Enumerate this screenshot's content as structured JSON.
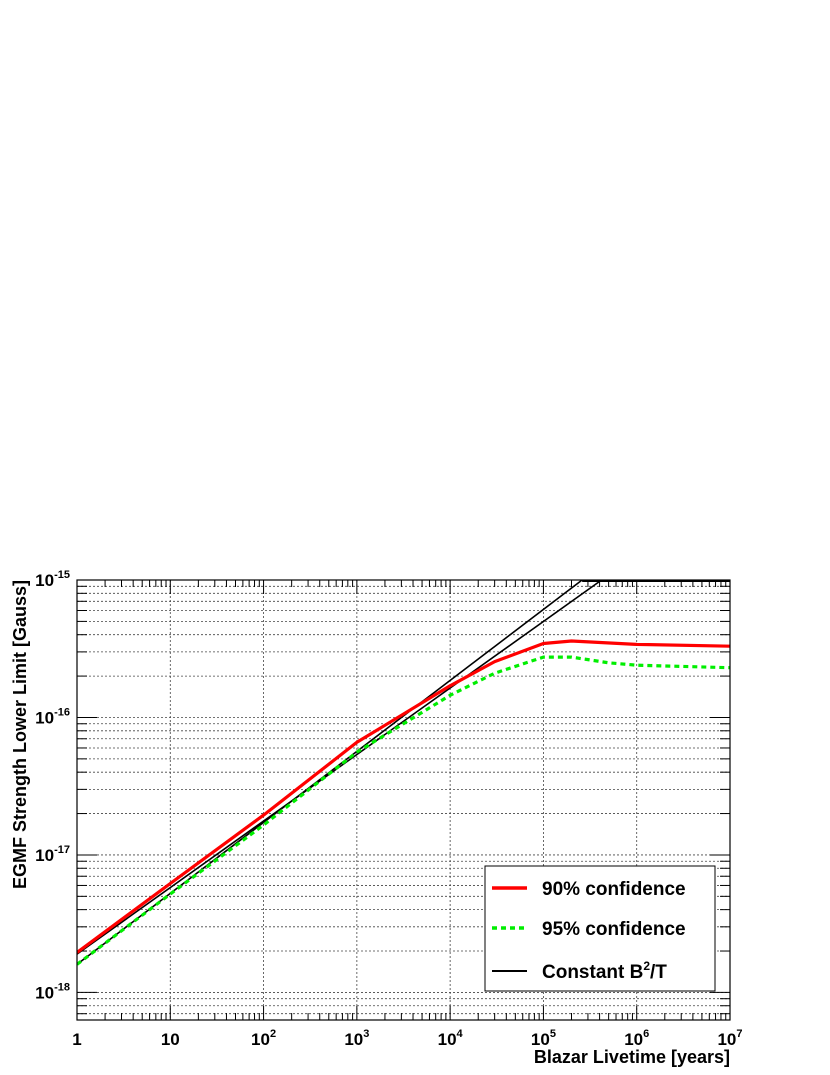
{
  "chart_data": {
    "type": "line",
    "xlabel": "Blazar Livetime [years]",
    "ylabel": "EGMF Strength Lower Limit [Gauss]",
    "xscale": "log",
    "yscale": "log",
    "xlim": [
      1,
      10000000
    ],
    "ylim": [
      6.3e-19,
      1e-15
    ],
    "x_ticks": [
      {
        "value": 1,
        "base": "1",
        "exp": ""
      },
      {
        "value": 10,
        "base": "10",
        "exp": ""
      },
      {
        "value": 100,
        "base": "10",
        "exp": "2"
      },
      {
        "value": 1000,
        "base": "10",
        "exp": "3"
      },
      {
        "value": 10000,
        "base": "10",
        "exp": "4"
      },
      {
        "value": 100000,
        "base": "10",
        "exp": "5"
      },
      {
        "value": 1000000,
        "base": "10",
        "exp": "6"
      },
      {
        "value": 10000000,
        "base": "10",
        "exp": "7"
      }
    ],
    "y_ticks": [
      {
        "value": 1e-15,
        "base": "10",
        "exp": "-15"
      },
      {
        "value": 1e-16,
        "base": "10",
        "exp": "-16"
      },
      {
        "value": 1e-17,
        "base": "10",
        "exp": "-17"
      },
      {
        "value": 1e-18,
        "base": "10",
        "exp": "-18"
      }
    ],
    "grid": true,
    "legend_position": "bottom-right",
    "series": [
      {
        "name": "90% confidence",
        "color": "#ff0000",
        "style": "solid",
        "x": [
          1,
          10,
          100,
          1000,
          10000,
          30000,
          100000,
          200000,
          1000000,
          10000000
        ],
        "y": [
          1.95e-18,
          6.2e-18,
          1.95e-17,
          6.6e-17,
          1.7e-16,
          2.55e-16,
          3.45e-16,
          3.6e-16,
          3.4e-16,
          3.3e-16
        ]
      },
      {
        "name": "95% confidence",
        "color": "#00ee00",
        "style": "dashed",
        "x": [
          1,
          10,
          100,
          1000,
          10000,
          30000,
          100000,
          200000,
          500000,
          1000000,
          10000000
        ],
        "y": [
          1.6e-18,
          5.2e-18,
          1.65e-17,
          5.6e-17,
          1.45e-16,
          2.1e-16,
          2.75e-16,
          2.75e-16,
          2.5e-16,
          2.4e-16,
          2.3e-16
        ]
      },
      {
        "name": "Constant B²/T",
        "legend_base": "Constant B",
        "legend_sup": "2",
        "legend_tail": "/T",
        "color": "#000000",
        "style": "solid",
        "x": [
          1,
          420000
        ],
        "y": [
          1.9e-18,
          1e-15
        ]
      },
      {
        "name": "",
        "color": "#000000",
        "style": "solid",
        "x": [
          1,
          260000
        ],
        "y": [
          1.6e-18,
          1e-15
        ]
      }
    ]
  }
}
